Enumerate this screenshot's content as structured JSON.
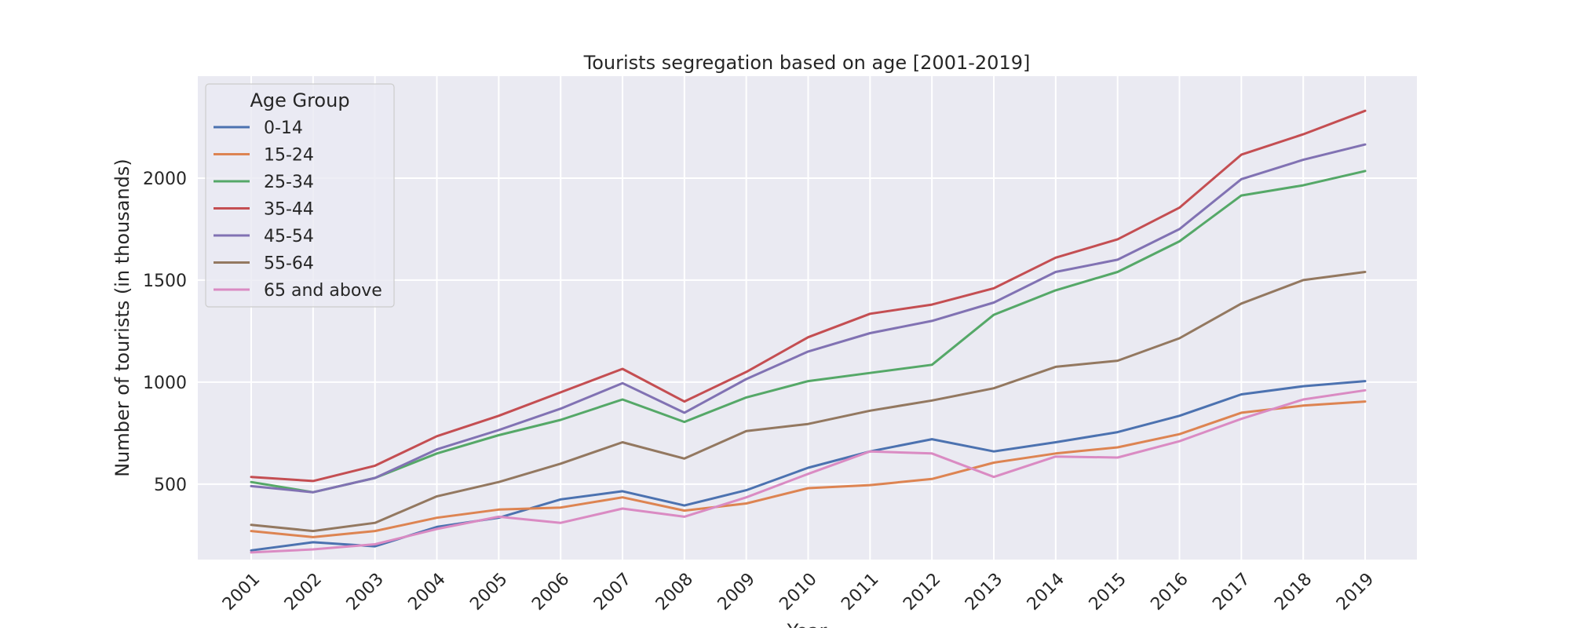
{
  "chart_data": {
    "type": "line",
    "title": "Tourists segregation based on age [2001-2019]",
    "xlabel": "Year",
    "ylabel": "Number of tourists (in thousands)",
    "x": [
      "2001",
      "2002",
      "2003",
      "2004",
      "2005",
      "2006",
      "2007",
      "2008",
      "2009",
      "2010",
      "2011",
      "2012",
      "2013",
      "2014",
      "2015",
      "2016",
      "2017",
      "2018",
      "2019"
    ],
    "ylim": [
      130,
      2500
    ],
    "yticks": [
      500,
      1000,
      1500,
      2000
    ],
    "grid": true,
    "legend": {
      "title": "Age Group",
      "placement": "top-left"
    },
    "series": [
      {
        "name": "0-14",
        "color": "#4c72b0",
        "values": [
          175,
          215,
          195,
          290,
          335,
          425,
          465,
          395,
          470,
          580,
          660,
          720,
          660,
          705,
          755,
          835,
          940,
          980,
          1005
        ]
      },
      {
        "name": "15-24",
        "color": "#dd8452",
        "values": [
          270,
          240,
          270,
          335,
          375,
          385,
          435,
          370,
          405,
          480,
          495,
          525,
          605,
          650,
          680,
          745,
          850,
          885,
          905
        ]
      },
      {
        "name": "25-34",
        "color": "#55a868",
        "values": [
          510,
          460,
          530,
          650,
          740,
          815,
          915,
          805,
          925,
          1005,
          1045,
          1085,
          1330,
          1450,
          1540,
          1690,
          1915,
          1965,
          2035
        ]
      },
      {
        "name": "35-44",
        "color": "#c44e52",
        "values": [
          535,
          515,
          590,
          735,
          835,
          950,
          1065,
          905,
          1050,
          1220,
          1335,
          1380,
          1460,
          1610,
          1700,
          1855,
          2115,
          2215,
          2330
        ]
      },
      {
        "name": "45-54",
        "color": "#8172b3",
        "values": [
          490,
          460,
          530,
          670,
          765,
          870,
          995,
          850,
          1015,
          1150,
          1240,
          1300,
          1390,
          1540,
          1600,
          1750,
          1995,
          2090,
          2165
        ]
      },
      {
        "name": "55-64",
        "color": "#937860",
        "values": [
          300,
          270,
          310,
          440,
          510,
          600,
          705,
          625,
          760,
          795,
          860,
          910,
          970,
          1075,
          1105,
          1215,
          1385,
          1500,
          1540
        ]
      },
      {
        "name": "65 and above",
        "color": "#da8bc3",
        "values": [
          165,
          180,
          205,
          280,
          340,
          310,
          380,
          340,
          435,
          550,
          660,
          650,
          535,
          635,
          630,
          710,
          820,
          915,
          960
        ]
      }
    ]
  }
}
